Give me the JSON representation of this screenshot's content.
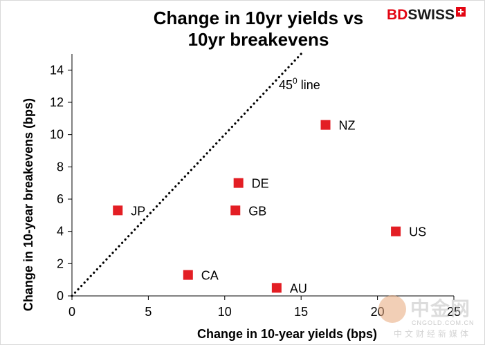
{
  "chart_data": {
    "type": "scatter",
    "title": "Change in 10yr yields vs 10yr breakevens",
    "title_lines": [
      "Change in 10yr yields vs",
      "10yr breakevens"
    ],
    "xlabel": "Change in 10-year yields (bps)",
    "ylabel": "Change in 10-year breakevens (bps)",
    "xlim": [
      0,
      25
    ],
    "ylim": [
      0,
      15
    ],
    "x_ticks": [
      0,
      5,
      10,
      15,
      20,
      25
    ],
    "y_ticks": [
      0,
      2,
      4,
      6,
      8,
      10,
      12,
      14
    ],
    "grid": false,
    "marker_color": "#e31e24",
    "points": [
      {
        "label": "JP",
        "x": 3.0,
        "y": 5.3
      },
      {
        "label": "CA",
        "x": 7.6,
        "y": 1.3
      },
      {
        "label": "GB",
        "x": 10.7,
        "y": 5.3
      },
      {
        "label": "DE",
        "x": 10.9,
        "y": 7.0
      },
      {
        "label": "AU",
        "x": 13.4,
        "y": 0.5
      },
      {
        "label": "NZ",
        "x": 16.6,
        "y": 10.6
      },
      {
        "label": "US",
        "x": 21.2,
        "y": 4.0
      }
    ],
    "reference_line": {
      "label_base": "45",
      "label_sup": "0",
      "label_rest": " line",
      "from": [
        0,
        0
      ],
      "to": [
        15,
        15
      ],
      "style": "dotted"
    }
  },
  "brand": {
    "name_bd": "BD",
    "name_swiss": "SWISS",
    "bd_color": "#e30613",
    "swiss_color": "#1a1a1a"
  },
  "watermark": {
    "name": "中金网",
    "domain": "CNGOLD.COM.CN",
    "tagline": "中文财经新媒体"
  }
}
